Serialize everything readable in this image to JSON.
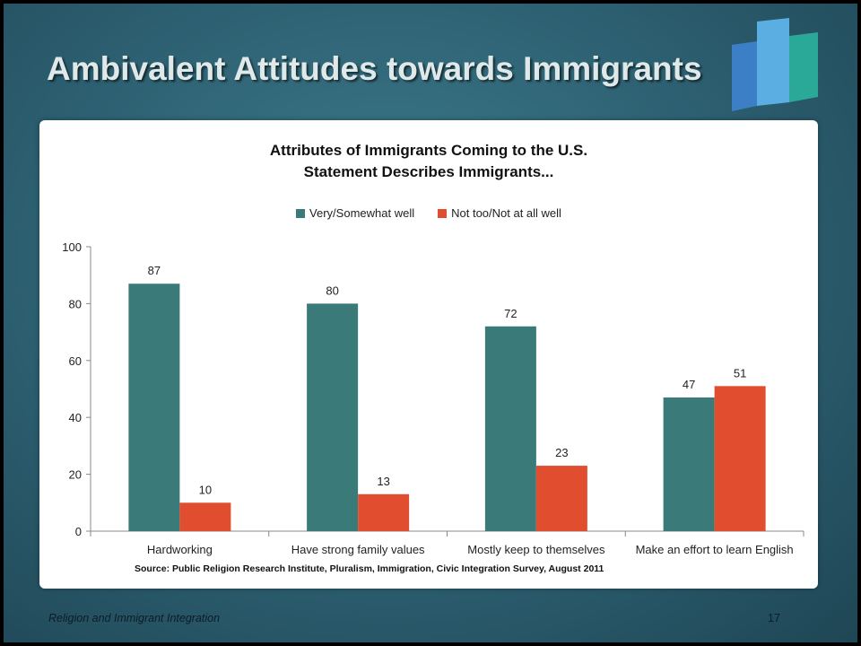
{
  "slide": {
    "title": "Ambivalent Attitudes towards Immigrants",
    "footer_text": "Religion and Immigrant Integration",
    "page_number": "17",
    "accent_colors": [
      "#3d7fc6",
      "#5aaee2",
      "#2aa898"
    ],
    "logo_icon": "bar-chart-logo-icon"
  },
  "chart_data": {
    "type": "bar",
    "title": "Attributes of Immigrants Coming to the U.S.",
    "subtitle": "Statement Describes Immigrants...",
    "categories": [
      "Hardworking",
      "Have strong family values",
      "Mostly keep to themselves",
      "Make an effort to learn English"
    ],
    "series": [
      {
        "name": "Very/Somewhat well",
        "values": [
          87,
          80,
          72,
          47
        ],
        "color": "#3a7a78"
      },
      {
        "name": "Not too/Not at all well",
        "values": [
          10,
          13,
          23,
          51
        ],
        "color": "#e04e2f"
      }
    ],
    "ylim": [
      0,
      100
    ],
    "yticks": [
      0,
      20,
      40,
      60,
      80,
      100
    ],
    "xlabel": "",
    "ylabel": "",
    "legend": "top",
    "grid": false,
    "data_labels": true,
    "source": "Source: Public Religion Research Institute, Pluralism, Immigration, Civic Integration Survey, August 2011"
  }
}
